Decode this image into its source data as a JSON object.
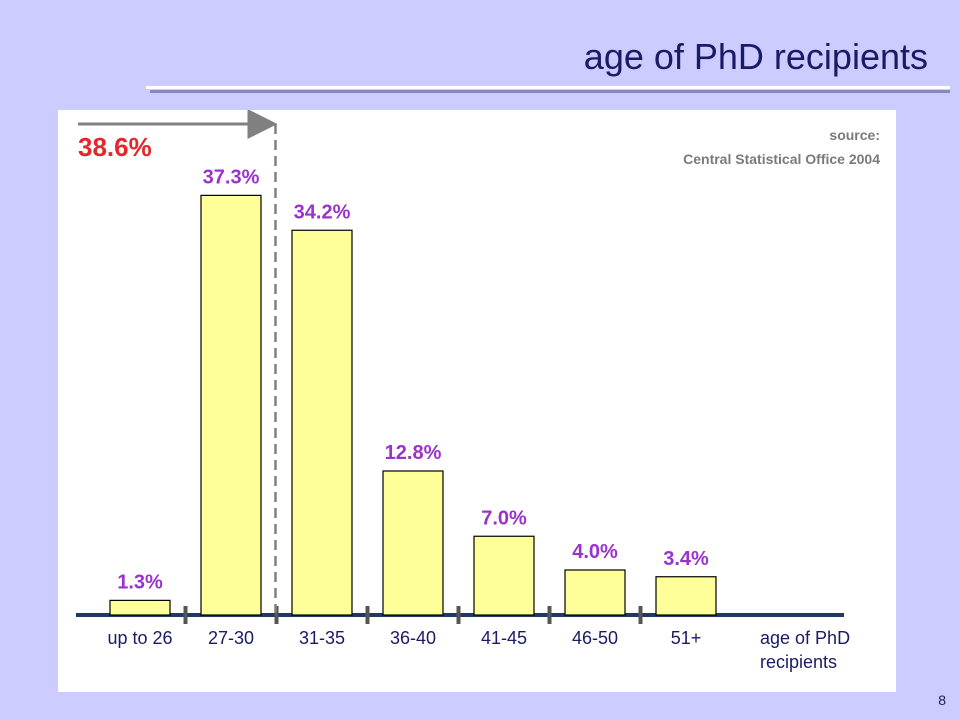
{
  "slide": {
    "title": "age of PhD recipients",
    "page_number": "8"
  },
  "colors": {
    "background": "#ccccff",
    "bar_fill": "#ffff99",
    "data_label": "#9933cc",
    "highlight": "#e8252b",
    "axis": "#1f3a5f"
  },
  "chart_data": {
    "type": "bar",
    "categories": [
      "up to 26",
      "27-30",
      "31-35",
      "36-40",
      "41-45",
      "46-50",
      "51+"
    ],
    "values": [
      1.3,
      37.3,
      34.2,
      12.8,
      7.0,
      4.0,
      3.4
    ],
    "value_labels": [
      "1.3%",
      "37.3%",
      "34.2%",
      "12.8%",
      "7.0%",
      "4.0%",
      "3.4%"
    ],
    "xlabel_lines": [
      "age of PhD",
      "recipients"
    ],
    "ylabel": "",
    "ylim": [
      0,
      40
    ],
    "grid": false,
    "source_lines": [
      "source:",
      "Central Statistical Office 2004"
    ],
    "cumulative_annotation": {
      "label": "38.6%",
      "categories": [
        "up to 26",
        "27-30"
      ]
    }
  }
}
